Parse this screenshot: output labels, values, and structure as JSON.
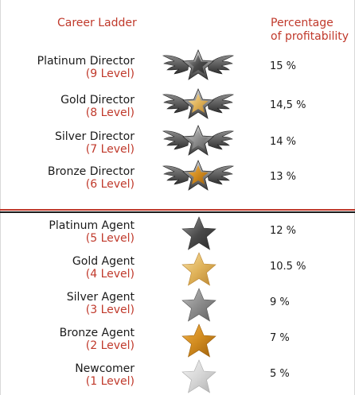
{
  "header": {
    "career_ladder": "Career Ladder",
    "percentage_line1": "Percentage",
    "percentage_line2": "of profitability"
  },
  "colors": {
    "accent_red": "#c0392b",
    "text_dark": "#1a1a1a",
    "star_platinum": "#5a5a5a",
    "star_gold": "#e0b35a",
    "star_silver": "#8c8c8c",
    "star_bronze": "#d08a1e",
    "star_newcomer": "#d6d6d6"
  },
  "directors": [
    {
      "title": "Platinum Director",
      "level": "(9 Level)",
      "percentage": "15 %",
      "badge": "winged-platinum-star-icon"
    },
    {
      "title": "Gold Director",
      "level": "(8 Level)",
      "percentage": "14,5 %",
      "badge": "winged-gold-star-icon"
    },
    {
      "title": "Silver Director",
      "level": "(7 Level)",
      "percentage": "14 %",
      "badge": "winged-silver-star-icon"
    },
    {
      "title": "Bronze Director",
      "level": "(6 Level)",
      "percentage": "13 %",
      "badge": "winged-bronze-star-icon"
    }
  ],
  "agents": [
    {
      "title": "Platinum Agent",
      "level": "(5 Level)",
      "percentage": "12 %",
      "badge": "platinum-star-icon"
    },
    {
      "title": "Gold Agent",
      "level": "(4 Level)",
      "percentage": "10.5 %",
      "badge": "gold-star-icon"
    },
    {
      "title": "Silver Agent",
      "level": "(3 Level)",
      "percentage": "9 %",
      "badge": "silver-star-icon"
    },
    {
      "title": "Bronze Agent",
      "level": "(2 Level)",
      "percentage": "7 %",
      "badge": "bronze-star-icon"
    },
    {
      "title": "Newcomer",
      "level": "(1 Level)",
      "percentage": "5 %",
      "badge": "newcomer-star-icon"
    }
  ]
}
